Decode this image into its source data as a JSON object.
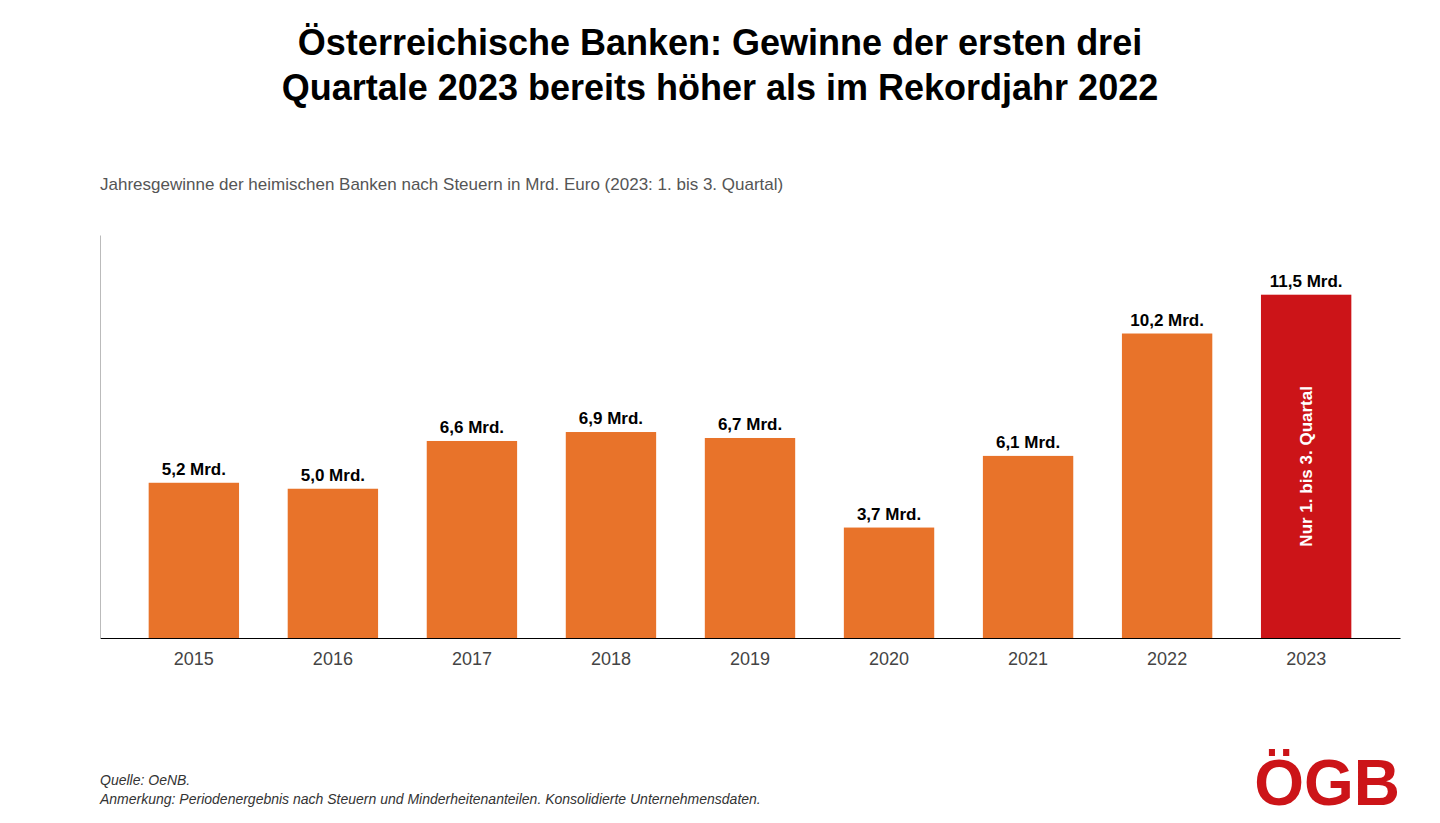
{
  "chart_data": {
    "type": "bar",
    "title": "Österreichische Banken: Gewinne der ersten drei\nQuartale 2023 bereits höher als im Rekordjahr 2022",
    "subtitle": "Jahresgewinne der heimischen Banken nach Steuern in Mrd. Euro (2023: 1. bis 3. Quartal)",
    "categories": [
      "2015",
      "2016",
      "2017",
      "2018",
      "2019",
      "2020",
      "2021",
      "2022",
      "2023"
    ],
    "values": [
      5.2,
      5.0,
      6.6,
      6.9,
      6.7,
      3.7,
      6.1,
      10.2,
      11.5
    ],
    "value_labels": [
      "5,2 Mrd.",
      "5,0 Mrd.",
      "6,6 Mrd.",
      "6,9 Mrd.",
      "6,7 Mrd.",
      "3,7 Mrd.",
      "6,1 Mrd.",
      "10,2 Mrd.",
      "11,5 Mrd."
    ],
    "data_labels": true,
    "colors": [
      "#E8732A",
      "#E8732A",
      "#E8732A",
      "#E8732A",
      "#E8732A",
      "#E8732A",
      "#E8732A",
      "#E8732A",
      "#CC1418"
    ],
    "ylim": [
      0,
      13.5
    ],
    "tick_labels": "x",
    "grid": false,
    "annotations": [
      {
        "text": "Nur 1. bis 3. Quartal",
        "category": "2023"
      }
    ],
    "source": "Quelle: OeNB.\nAnmerkung: Periodenergebnis nach Steuern und Minderheitenanteilen. Konsolidierte Unternehmensdaten.",
    "logo": {
      "text": "ÖGB",
      "color": "#CC1418"
    }
  }
}
